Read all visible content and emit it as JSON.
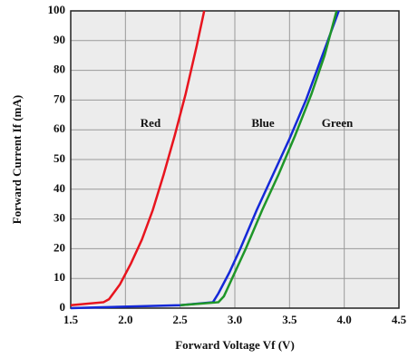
{
  "chart_data": {
    "type": "line",
    "x_label": "Forward Voltage Vf (V)",
    "y_label": "Forward Current If (mA)",
    "xlim": [
      1.5,
      4.5
    ],
    "xticks": [
      1.5,
      {
        "value": 2,
        "label": "2.0"
      },
      2.5,
      {
        "value": 3,
        "label": "3.0"
      },
      3.5,
      {
        "value": 4,
        "label": "4.0"
      },
      4.5
    ],
    "ylim": [
      0,
      100
    ],
    "yticks": [
      0,
      10,
      20,
      30,
      40,
      50,
      60,
      70,
      80,
      90,
      100
    ],
    "grid": true,
    "series": [
      {
        "name": "Red",
        "color": "#e8141e",
        "x": [
          1.5,
          1.8,
          1.85,
          1.95,
          2.05,
          2.15,
          2.25,
          2.35,
          2.45,
          2.55,
          2.65,
          2.72
        ],
        "values": [
          1,
          2,
          3,
          8,
          15,
          23,
          33,
          45,
          58,
          72,
          88,
          100
        ]
      },
      {
        "name": "Blue",
        "color": "#1428d8",
        "x": [
          1.5,
          2.5,
          2.8,
          2.85,
          2.95,
          3.05,
          3.2,
          3.35,
          3.5,
          3.65,
          3.8,
          3.95
        ],
        "values": [
          0,
          1,
          2,
          5,
          12,
          20,
          33,
          45,
          57,
          70,
          85,
          100
        ]
      },
      {
        "name": "Green",
        "color": "#1e9628",
        "x": [
          2.5,
          2.85,
          2.9,
          3.0,
          3.1,
          3.25,
          3.4,
          3.55,
          3.7,
          3.82,
          3.93
        ],
        "values": [
          1,
          2,
          4,
          12,
          20,
          33,
          45,
          58,
          72,
          85,
          100
        ]
      }
    ]
  }
}
